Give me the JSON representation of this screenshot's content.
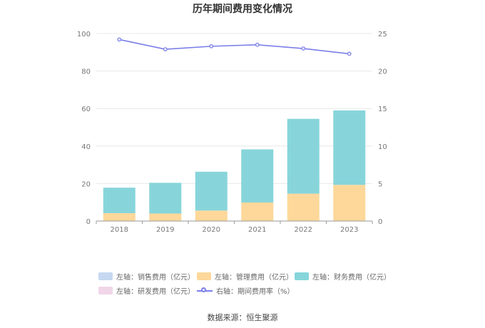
{
  "chart_data": {
    "type": "bar",
    "title": "历年期间费用变化情况",
    "categories": [
      "2018",
      "2019",
      "2020",
      "2021",
      "2022",
      "2023"
    ],
    "stacked": true,
    "left_axis": {
      "ylim": [
        0,
        100
      ],
      "ticks": [
        0,
        20,
        40,
        60,
        80,
        100
      ]
    },
    "right_axis": {
      "ylim": [
        0,
        25
      ],
      "ticks": [
        0,
        5,
        10,
        15,
        20,
        25
      ]
    },
    "series": [
      {
        "name": "左轴：销售费用（亿元）",
        "type": "bar",
        "axis": "left",
        "color": "#c5d8f0",
        "values": [
          0,
          0,
          0,
          0,
          0,
          0
        ]
      },
      {
        "name": "左轴：管理费用（亿元）",
        "type": "bar",
        "axis": "left",
        "color": "#fdd89a",
        "values": [
          4.2,
          4.0,
          5.6,
          9.9,
          14.6,
          19.3
        ]
      },
      {
        "name": "左轴：财务费用（亿元）",
        "type": "bar",
        "axis": "left",
        "color": "#87d5da",
        "values": [
          13.6,
          16.4,
          20.7,
          28.3,
          39.9,
          39.7
        ]
      },
      {
        "name": "左轴：研发费用（亿元）",
        "type": "bar",
        "axis": "left",
        "color": "#f0d6e8",
        "values": [
          0,
          0,
          0,
          0,
          0,
          0
        ]
      },
      {
        "name": "右轴：期间费用率（%）",
        "type": "line",
        "axis": "right",
        "color": "#7b7fe8",
        "values": [
          24.2,
          22.9,
          23.3,
          23.5,
          23.0,
          22.3
        ]
      }
    ],
    "grid": true,
    "legend_position": "bottom"
  },
  "source_text": "数据来源：恒生聚源"
}
